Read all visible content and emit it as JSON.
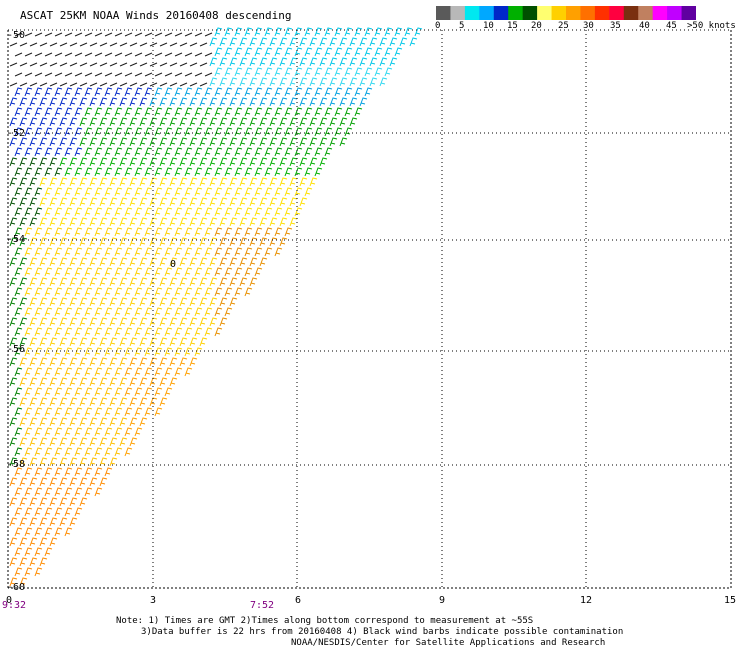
{
  "title": "ASCAT 25KM NOAA Winds 20160408 descending",
  "legend": {
    "unit_label": ">50 knots",
    "ticks": [
      "0",
      "5",
      "10",
      "15",
      "20",
      "25",
      "30",
      "35",
      "40",
      "45"
    ],
    "colors": [
      "#5a5a5a",
      "#b8b8b8",
      "#00e8f0",
      "#00a8ff",
      "#0028c8",
      "#00b000",
      "#005000",
      "#ffff70",
      "#ffd000",
      "#ffa000",
      "#ff7000",
      "#ff3000",
      "#ff0040",
      "#7a3010",
      "#c08060",
      "#ff00ff",
      "#c000ff",
      "#6000a0"
    ]
  },
  "map": {
    "lat_labels": [
      "-50",
      "-52",
      "-54",
      "-56",
      "-58",
      "-60"
    ],
    "lon_labels": [
      "0",
      "3",
      "6",
      "9",
      "12",
      "15"
    ],
    "time_labels": [
      "9:32",
      "7:52"
    ],
    "low_marker": "0",
    "lat_range": [
      -60,
      -50
    ],
    "lon_range": [
      0,
      15
    ]
  },
  "notes": {
    "line1": "Note: 1) Times are GMT 2)Times along bottom correspond to measurement at ~55S",
    "line2": "3)Data buffer is 22 hrs from 20160408 4) Black wind barbs indicate possible contamination",
    "credit": "NOAA/NESDIS/Center for Satellite Applications and Research"
  }
}
